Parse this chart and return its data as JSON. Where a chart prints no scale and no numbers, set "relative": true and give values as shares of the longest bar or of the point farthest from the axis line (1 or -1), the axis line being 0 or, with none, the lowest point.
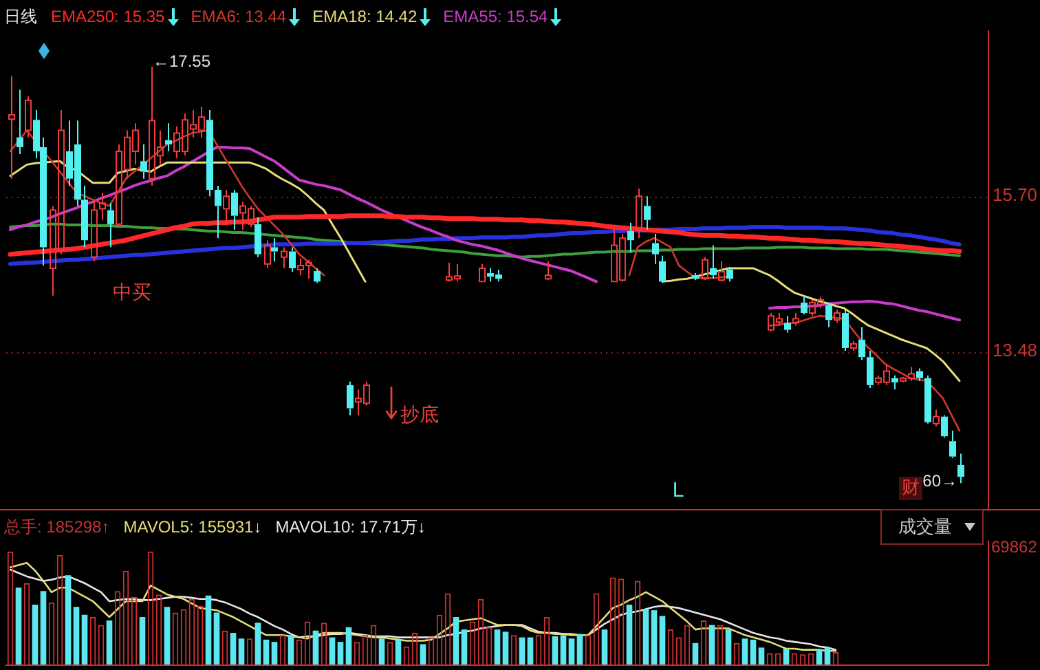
{
  "chart_data": [
    {
      "type": "candlestick",
      "title": "日线",
      "categories": [
        null,
        null,
        null,
        null,
        null,
        null,
        null,
        null,
        null,
        null,
        null,
        null,
        null,
        null,
        null,
        null,
        null,
        null,
        null,
        null,
        null,
        null,
        null,
        null,
        null,
        null,
        null,
        null,
        null,
        null,
        null,
        null,
        null,
        null,
        null,
        null,
        null,
        null,
        null,
        null,
        null,
        null,
        null,
        null,
        null,
        null,
        null,
        null,
        null,
        null,
        null,
        null,
        null,
        null,
        null,
        null,
        null,
        null,
        null,
        null,
        null,
        null,
        null,
        null,
        null,
        null,
        null,
        null,
        null,
        null,
        null,
        null,
        null,
        null,
        null,
        null,
        null,
        null,
        null,
        null,
        null,
        null,
        null,
        null,
        null,
        null,
        null,
        null,
        null,
        null,
        null,
        null,
        null,
        null,
        null,
        null,
        null,
        null,
        null,
        null,
        null,
        null,
        null,
        null,
        null,
        null,
        null,
        null,
        null,
        null,
        null,
        null,
        null,
        null,
        null,
        null,
        null,
        null,
        null
      ],
      "ohlc": [
        [
          16.8,
          17.42,
          15.95,
          16.86
        ],
        [
          16.54,
          17.22,
          16.3,
          16.4
        ],
        [
          16.64,
          17.13,
          16.54,
          17.07
        ],
        [
          16.79,
          16.93,
          16.24,
          16.34
        ],
        [
          16.4,
          16.54,
          14.71,
          14.97
        ],
        [
          14.67,
          15.56,
          14.28,
          15.5
        ],
        [
          14.93,
          16.93,
          14.87,
          16.64
        ],
        [
          16.34,
          16.78,
          15.85,
          15.95
        ],
        [
          16.44,
          16.78,
          15.56,
          15.65
        ],
        [
          15.65,
          15.85,
          14.97,
          15.07
        ],
        [
          14.83,
          15.65,
          14.77,
          15.5
        ],
        [
          15.52,
          15.75,
          15.36,
          15.6
        ],
        [
          15.5,
          15.6,
          14.97,
          15.3
        ],
        [
          15.3,
          16.44,
          15.26,
          16.34
        ],
        [
          16.08,
          16.64,
          15.95,
          16.54
        ],
        [
          16.34,
          16.74,
          16.15,
          16.64
        ],
        [
          16.2,
          16.44,
          15.95,
          16.05
        ],
        [
          15.95,
          17.55,
          15.85,
          16.78
        ],
        [
          16.28,
          16.64,
          16.15,
          16.4
        ],
        [
          16.5,
          16.74,
          16.34,
          16.44
        ],
        [
          16.34,
          16.7,
          16.24,
          16.6
        ],
        [
          16.34,
          16.88,
          16.28,
          16.79
        ],
        [
          16.66,
          16.93,
          16.54,
          16.72
        ],
        [
          16.64,
          16.98,
          16.54,
          16.83
        ],
        [
          16.79,
          16.93,
          15.7,
          15.79
        ],
        [
          15.79,
          15.85,
          15.1,
          15.56
        ],
        [
          15.52,
          15.79,
          15.3,
          15.7
        ],
        [
          15.75,
          15.79,
          15.22,
          15.42
        ],
        [
          15.46,
          15.62,
          15.22,
          15.56
        ],
        [
          15.3,
          15.56,
          15.26,
          15.52
        ],
        [
          15.3,
          15.4,
          14.83,
          14.87
        ],
        [
          14.73,
          15.07,
          14.67,
          15.0
        ],
        [
          14.97,
          15.1,
          14.77,
          14.91
        ],
        [
          14.83,
          14.97,
          14.67,
          14.91
        ],
        [
          14.91,
          14.97,
          14.62,
          14.67
        ],
        [
          14.65,
          14.81,
          14.57,
          14.71
        ],
        [
          14.71,
          14.79,
          14.52,
          14.75
        ],
        [
          14.63,
          14.67,
          14.46,
          14.48
        ],
        null,
        null,
        null,
        [
          13.0,
          13.05,
          12.57,
          12.67
        ],
        [
          12.76,
          12.94,
          12.57,
          12.81
        ],
        [
          12.74,
          13.05,
          12.71,
          13.0
        ],
        null,
        null,
        null,
        null,
        null,
        null,
        null,
        null,
        null,
        [
          14.5,
          14.75,
          14.48,
          14.55
        ],
        [
          14.52,
          14.73,
          14.48,
          14.56
        ],
        null,
        null,
        [
          14.48,
          14.73,
          14.48,
          14.67
        ],
        [
          14.6,
          14.67,
          14.48,
          14.55
        ],
        [
          14.58,
          14.65,
          14.48,
          14.52
        ],
        null,
        null,
        null,
        null,
        null,
        [
          14.52,
          14.77,
          14.5,
          14.57
        ],
        null,
        null,
        null,
        null,
        null,
        null,
        null,
        [
          14.48,
          15.26,
          14.48,
          15.0
        ],
        [
          14.5,
          15.16,
          14.48,
          15.1
        ],
        [
          15.2,
          15.32,
          14.89,
          15.07
        ],
        [
          15.22,
          15.81,
          15.1,
          15.7
        ],
        [
          15.56,
          15.7,
          15.22,
          15.36
        ],
        [
          15.03,
          15.16,
          14.73,
          14.87
        ],
        [
          14.77,
          14.85,
          14.46,
          14.48
        ],
        null,
        null,
        null,
        [
          14.57,
          14.6,
          14.5,
          14.52
        ],
        [
          14.52,
          14.83,
          14.5,
          14.79
        ],
        [
          14.67,
          15.0,
          14.52,
          14.57
        ],
        [
          14.5,
          14.77,
          14.48,
          14.62
        ],
        [
          14.65,
          14.69,
          14.48,
          14.52
        ],
        null,
        null,
        null,
        null,
        [
          13.79,
          14.03,
          13.77,
          13.99
        ],
        [
          13.9,
          14.03,
          13.85,
          13.95
        ],
        [
          13.89,
          13.99,
          13.75,
          13.79
        ],
        [
          13.89,
          14.03,
          13.85,
          13.95
        ],
        [
          14.18,
          14.28,
          14.01,
          14.03
        ],
        [
          14.03,
          14.22,
          13.99,
          14.18
        ],
        [
          14.14,
          14.26,
          14.1,
          14.22
        ],
        [
          14.14,
          14.18,
          13.83,
          13.93
        ],
        [
          13.93,
          14.08,
          13.89,
          14.03
        ],
        [
          14.03,
          14.07,
          13.49,
          13.53
        ],
        [
          13.53,
          13.63,
          13.49,
          13.59
        ],
        [
          13.65,
          13.83,
          13.36,
          13.4
        ],
        [
          13.4,
          13.49,
          12.96,
          13.0
        ],
        [
          13.04,
          13.14,
          13.0,
          13.1
        ],
        [
          13.04,
          13.3,
          13.0,
          13.2
        ],
        [
          13.1,
          13.14,
          12.94,
          13.04
        ],
        [
          13.06,
          13.12,
          13.04,
          13.1
        ],
        [
          13.1,
          13.26,
          13.06,
          13.16
        ],
        [
          13.2,
          13.24,
          13.06,
          13.1
        ],
        [
          13.1,
          13.14,
          12.45,
          12.47
        ],
        [
          12.45,
          12.65,
          12.41,
          12.55
        ],
        [
          12.55,
          12.57,
          12.25,
          12.27
        ],
        [
          12.2,
          12.35,
          11.96,
          11.98
        ],
        [
          11.86,
          12.02,
          11.6,
          11.69
        ],
        null,
        null,
        null
      ],
      "colors": [
        "#f03c3c",
        "#54f0f0",
        "#f03c3c",
        "#54f0f0",
        "#54f0f0",
        "#f03c3c",
        "#f03c3c",
        "#54f0f0",
        "#54f0f0",
        "#54f0f0",
        "#f03c3c",
        "#f03c3c",
        "#54f0f0",
        "#f03c3c",
        "#f03c3c",
        "#f03c3c",
        "#54f0f0",
        "#f03c3c",
        "#f03c3c",
        "#54f0f0",
        "#f03c3c",
        "#f03c3c",
        "#f03c3c",
        "#f03c3c",
        "#54f0f0",
        "#54f0f0",
        "#f03c3c",
        "#54f0f0",
        "#f03c3c",
        "#f03c3c",
        "#54f0f0",
        "#f03c3c",
        "#54f0f0",
        "#f03c3c",
        "#54f0f0",
        "#f03c3c",
        "#f03c3c",
        "#54f0f0",
        null,
        null,
        null,
        "#54f0f0",
        "#f03c3c",
        "#f03c3c",
        null,
        null,
        null,
        null,
        null,
        null,
        null,
        null,
        null,
        "#f03c3c",
        "#f03c3c",
        null,
        null,
        "#f03c3c",
        "#54f0f0",
        "#54f0f0",
        null,
        null,
        null,
        null,
        null,
        "#f03c3c",
        null,
        null,
        null,
        null,
        null,
        null,
        null,
        "#f03c3c",
        "#f03c3c",
        "#54f0f0",
        "#f03c3c",
        "#54f0f0",
        "#54f0f0",
        "#54f0f0",
        null,
        null,
        null,
        "#54f0f0",
        "#f03c3c",
        "#54f0f0",
        "#f03c3c",
        "#54f0f0",
        null,
        null,
        null,
        null,
        "#f03c3c",
        "#f03c3c",
        "#54f0f0",
        "#f03c3c",
        "#54f0f0",
        "#f03c3c",
        "#f03c3c",
        "#54f0f0",
        "#f03c3c",
        "#54f0f0",
        "#f03c3c",
        "#54f0f0",
        "#54f0f0",
        "#f03c3c",
        "#f03c3c",
        "#54f0f0",
        "#f03c3c",
        "#f03c3c",
        "#54f0f0",
        "#54f0f0",
        "#f03c3c",
        "#54f0f0",
        "#54f0f0",
        "#54f0f0",
        null,
        null,
        null
      ],
      "series": [
        {
          "type": "line",
          "name": "EMA250: 15.35",
          "color": "#ff2828",
          "values": [
            14.87,
            14.88,
            14.89,
            14.9,
            14.91,
            14.92,
            14.93,
            14.94,
            14.95,
            14.97,
            14.99,
            15.01,
            15.03,
            15.05,
            15.07,
            15.1,
            15.13,
            15.16,
            15.19,
            15.22,
            15.25,
            15.27,
            15.3,
            15.31,
            15.31,
            15.32,
            15.32,
            15.33,
            15.33,
            15.34,
            15.36,
            15.38,
            15.4,
            15.4,
            15.4,
            15.4,
            15.41,
            15.41,
            15.41,
            15.41,
            15.41,
            15.42,
            15.42,
            15.42,
            15.42,
            15.42,
            15.41,
            15.41,
            15.4,
            15.4,
            15.4,
            15.39,
            15.39,
            15.38,
            15.38,
            15.38,
            15.38,
            15.37,
            15.37,
            15.37,
            15.36,
            15.36,
            15.36,
            15.35,
            15.35,
            15.34,
            15.33,
            15.33,
            15.32,
            15.31,
            15.3,
            15.29,
            15.27,
            15.26,
            15.25,
            15.24,
            15.23,
            15.22,
            15.21,
            15.2,
            15.19,
            15.18,
            15.16,
            15.15,
            15.14,
            15.14,
            15.14,
            15.13,
            15.13,
            15.12,
            15.12,
            15.11,
            15.1,
            15.1,
            15.09,
            15.08,
            15.07,
            15.07,
            15.06,
            15.05,
            15.05,
            15.04,
            15.03,
            15.02,
            15.02,
            15.01,
            15.0,
            14.99,
            14.98,
            14.97,
            14.96,
            14.94,
            14.93,
            14.92,
            14.92,
            14.91,
            null,
            null,
            null
          ]
        },
        {
          "type": "line",
          "name": "EMA6: 13.44",
          "color": "#d2372d",
          "values": [
            16.34,
            16.49,
            16.64,
            16.49,
            16.34,
            16.2,
            16.05,
            15.9,
            15.75,
            15.7,
            15.65,
            15.6,
            15.56,
            15.75,
            15.95,
            16.05,
            16.14,
            16.24,
            16.34,
            16.44,
            16.49,
            16.55,
            16.6,
            16.62,
            16.64,
            16.44,
            16.24,
            16.05,
            15.85,
            15.68,
            15.52,
            15.4,
            15.28,
            15.16,
            15.02,
            14.87,
            14.77,
            14.67,
            14.57,
            null,
            null,
            null,
            null,
            null,
            null,
            null,
            null,
            null,
            null,
            null,
            null,
            null,
            null,
            null,
            null,
            null,
            null,
            null,
            null,
            null,
            null,
            null,
            null,
            null,
            null,
            null,
            null,
            null,
            null,
            null,
            null,
            null,
            null,
            null,
            null,
            14.57,
            14.97,
            15.05,
            15.1,
            15.04,
            14.97,
            14.71,
            14.62,
            14.53,
            14.53,
            14.53,
            14.54,
            14.55,
            null,
            null,
            null,
            null,
            13.85,
            13.86,
            13.88,
            13.89,
            13.92,
            13.96,
            13.99,
            13.98,
            13.96,
            13.95,
            13.8,
            13.65,
            13.53,
            13.42,
            13.3,
            13.23,
            13.17,
            13.1,
            13.08,
            13.06,
            12.94,
            12.81,
            12.58,
            12.35,
            null,
            null,
            null
          ]
        },
        {
          "type": "line",
          "name": "EMA18: 14.42",
          "color": "#e6dc78",
          "values": [
            15.99,
            16.07,
            16.15,
            16.17,
            16.18,
            16.19,
            16.2,
            16.11,
            16.07,
            15.98,
            15.89,
            15.89,
            15.89,
            16.03,
            16.06,
            16.09,
            16.07,
            16.05,
            16.12,
            16.18,
            16.18,
            16.18,
            16.18,
            16.18,
            16.18,
            16.18,
            16.18,
            16.18,
            16.18,
            16.18,
            16.14,
            16.09,
            16.01,
            15.94,
            15.88,
            15.81,
            15.71,
            15.6,
            15.5,
            15.3,
            15.11,
            14.9,
            14.69,
            14.48,
            null,
            null,
            null,
            null,
            null,
            null,
            null,
            null,
            null,
            null,
            null,
            null,
            null,
            null,
            null,
            null,
            null,
            null,
            null,
            null,
            null,
            null,
            null,
            null,
            null,
            null,
            null,
            null,
            null,
            null,
            null,
            null,
            null,
            null,
            null,
            14.48,
            14.49,
            14.51,
            14.52,
            14.55,
            14.58,
            14.61,
            14.64,
            14.67,
            14.67,
            14.67,
            14.67,
            14.62,
            14.57,
            14.49,
            14.4,
            14.32,
            14.28,
            14.24,
            14.2,
            14.17,
            14.13,
            14.1,
            14.02,
            13.93,
            13.85,
            13.8,
            13.75,
            13.7,
            13.65,
            13.61,
            13.57,
            13.53,
            13.44,
            13.34,
            13.2,
            13.06,
            null,
            null,
            null
          ]
        },
        {
          "type": "line",
          "name": "EMA55: 15.54",
          "color": "#c83cc8",
          "values": [
            15.22,
            15.26,
            15.29,
            15.33,
            15.36,
            15.4,
            15.45,
            15.49,
            15.53,
            15.58,
            15.62,
            15.67,
            15.71,
            15.76,
            15.8,
            15.85,
            15.89,
            15.92,
            15.96,
            15.99,
            16.06,
            16.12,
            16.19,
            16.26,
            16.33,
            16.4,
            16.4,
            16.39,
            16.39,
            16.38,
            16.32,
            16.26,
            16.2,
            16.11,
            16.02,
            15.93,
            15.9,
            15.87,
            15.85,
            15.82,
            15.79,
            15.73,
            15.67,
            15.62,
            15.56,
            15.5,
            15.45,
            15.4,
            15.35,
            15.3,
            15.25,
            15.21,
            15.16,
            15.12,
            15.07,
            15.04,
            15.01,
            14.99,
            14.96,
            14.93,
            14.89,
            14.85,
            14.81,
            14.78,
            14.75,
            14.72,
            14.69,
            14.66,
            14.63,
            14.58,
            14.53,
            14.48,
            null,
            null,
            null,
            null,
            null,
            null,
            null,
            null,
            null,
            null,
            null,
            null,
            null,
            null,
            null,
            null,
            null,
            null,
            null,
            null,
            14.1,
            14.11,
            14.11,
            14.12,
            14.12,
            14.13,
            14.14,
            14.16,
            14.17,
            14.18,
            14.19,
            14.19,
            14.2,
            14.19,
            14.17,
            14.16,
            14.13,
            14.1,
            14.07,
            14.05,
            14.02,
            13.99,
            13.96,
            13.93,
            null,
            null,
            null
          ]
        },
        {
          "type": "line",
          "color": "#2832dc",
          "values": [
            14.73,
            14.74,
            14.75,
            14.75,
            14.76,
            14.77,
            14.78,
            14.79,
            14.79,
            14.8,
            14.81,
            14.82,
            14.83,
            14.84,
            14.85,
            14.86,
            14.86,
            14.87,
            14.88,
            14.89,
            14.9,
            14.91,
            14.92,
            14.93,
            14.94,
            14.95,
            14.96,
            14.96,
            14.97,
            14.98,
            14.99,
            15.0,
            15.01,
            15.01,
            15.01,
            15.01,
            15.02,
            15.02,
            15.02,
            15.02,
            15.02,
            15.03,
            15.03,
            15.03,
            15.04,
            15.04,
            15.05,
            15.06,
            15.06,
            15.07,
            15.08,
            15.08,
            15.09,
            15.09,
            15.1,
            15.1,
            15.1,
            15.11,
            15.11,
            15.11,
            15.11,
            15.12,
            15.12,
            15.13,
            15.14,
            15.14,
            15.15,
            15.16,
            15.17,
            15.17,
            15.18,
            15.19,
            15.19,
            15.2,
            15.2,
            15.21,
            15.21,
            15.21,
            15.22,
            15.22,
            15.22,
            15.23,
            15.23,
            15.23,
            15.24,
            15.24,
            15.24,
            15.25,
            15.25,
            15.25,
            15.26,
            15.26,
            15.26,
            15.26,
            15.25,
            15.25,
            15.25,
            15.25,
            15.25,
            15.24,
            15.24,
            15.24,
            15.23,
            15.22,
            15.21,
            15.19,
            15.18,
            15.17,
            15.15,
            15.14,
            15.12,
            15.1,
            15.08,
            15.06,
            15.03,
            15.01,
            null,
            null,
            null
          ]
        },
        {
          "type": "line",
          "color": "#3ca03c",
          "values": [
            15.26,
            15.27,
            15.28,
            15.28,
            15.29,
            15.3,
            15.3,
            15.29,
            15.29,
            15.29,
            15.28,
            15.28,
            15.28,
            15.27,
            15.27,
            15.26,
            15.25,
            15.25,
            15.24,
            15.24,
            15.23,
            15.23,
            15.22,
            15.21,
            15.2,
            15.2,
            15.19,
            15.18,
            15.18,
            15.17,
            15.16,
            15.15,
            15.14,
            15.13,
            15.12,
            15.11,
            15.1,
            15.08,
            15.07,
            15.06,
            15.05,
            15.04,
            15.03,
            15.02,
            15.02,
            15.01,
            15.0,
            14.99,
            14.98,
            14.97,
            14.96,
            14.94,
            14.93,
            14.92,
            14.91,
            14.9,
            14.88,
            14.87,
            14.86,
            14.85,
            14.85,
            14.84,
            14.83,
            14.84,
            14.84,
            14.85,
            14.86,
            14.87,
            14.87,
            14.88,
            14.89,
            14.9,
            14.9,
            14.91,
            14.91,
            14.91,
            14.92,
            14.92,
            14.92,
            14.93,
            14.93,
            14.94,
            14.94,
            14.94,
            14.95,
            14.95,
            14.95,
            14.95,
            14.95,
            14.96,
            14.96,
            14.96,
            14.96,
            14.97,
            14.97,
            14.97,
            14.97,
            14.96,
            14.96,
            14.96,
            14.95,
            14.95,
            14.95,
            14.95,
            14.94,
            14.94,
            14.94,
            14.93,
            14.92,
            14.91,
            14.9,
            14.89,
            14.88,
            14.87,
            14.86,
            14.85,
            null,
            null,
            null
          ]
        }
      ],
      "ylim": [
        11.23,
        18.07
      ],
      "yticks": [
        {
          "value": 15.7,
          "label": "15.70"
        },
        13.48
      ],
      "grid": "y",
      "legend": "top left",
      "tick_labels": "y",
      "annotations": [
        "←17.55",
        "中买",
        "抄底",
        "L",
        "财",
        "60→"
      ]
    },
    {
      "type": "bar",
      "relative": true,
      "categories": [
        null,
        null,
        null,
        null,
        null,
        null,
        null,
        null,
        null,
        null,
        null,
        null,
        null,
        null,
        null,
        null,
        null,
        null,
        null,
        null,
        null,
        null,
        null,
        null,
        null,
        null,
        null,
        null,
        null,
        null,
        null,
        null,
        null,
        null,
        null,
        null,
        null,
        null,
        null,
        null,
        null,
        null,
        null,
        null,
        null,
        null,
        null,
        null,
        null,
        null,
        null,
        null,
        null,
        null,
        null,
        null,
        null,
        null,
        null,
        null,
        null,
        null,
        null,
        null,
        null,
        null,
        null,
        null,
        null,
        null,
        null,
        null,
        null,
        null,
        null,
        null,
        null,
        null,
        null,
        null,
        null,
        null,
        null,
        null,
        null,
        null,
        null,
        null,
        null,
        null,
        null,
        null,
        null,
        null,
        null,
        null,
        null,
        null,
        null,
        null,
        null,
        null,
        null,
        null,
        null,
        null,
        null,
        null,
        null,
        null,
        null,
        null,
        null,
        null,
        null,
        null,
        null,
        null,
        null
      ],
      "series": [
        {
          "name": "总手: 185298↑",
          "color": "#c83232",
          "colors": [
            "#c83232",
            "#5ce6f0",
            "#c83232",
            "#5ce6f0",
            "#5ce6f0",
            "#c83232",
            "#c83232",
            "#5ce6f0",
            "#5ce6f0",
            "#5ce6f0",
            "#c83232",
            "#c83232",
            "#5ce6f0",
            "#c83232",
            "#c83232",
            "#c83232",
            "#5ce6f0",
            "#c83232",
            "#c83232",
            "#5ce6f0",
            "#c83232",
            "#c83232",
            "#c83232",
            "#c83232",
            "#5ce6f0",
            "#5ce6f0",
            "#c83232",
            "#5ce6f0",
            "#5ce6f0",
            "#c83232",
            "#5ce6f0",
            "#5ce6f0",
            "#5ce6f0",
            "#c83232",
            "#5ce6f0",
            "#c83232",
            "#c83232",
            "#5ce6f0",
            "#c83232",
            "#5ce6f0",
            "#5ce6f0",
            "#5ce6f0",
            "#c83232",
            "#c83232",
            "#c83232",
            "#5ce6f0",
            "#c83232",
            "#5ce6f0",
            "#c83232",
            "#c83232",
            "#5ce6f0",
            "#c83232",
            "#c83232",
            "#c83232",
            "#5ce6f0",
            "#5ce6f0",
            "#c83232",
            "#c83232",
            "#c83232",
            "#5ce6f0",
            "#5ce6f0",
            "#c83232",
            "#5ce6f0",
            "#5ce6f0",
            "#c83232",
            "#c83232",
            "#5ce6f0",
            "#5ce6f0",
            "#5ce6f0",
            "#5ce6f0",
            "#c83232",
            "#c83232",
            "#5ce6f0",
            "#c83232",
            "#c83232",
            "#5ce6f0",
            "#c83232",
            "#5ce6f0",
            "#5ce6f0",
            "#5ce6f0",
            "#c83232",
            "#c83232",
            "#c83232",
            "#5ce6f0",
            "#c83232",
            "#5ce6f0",
            "#c83232",
            "#5ce6f0",
            "#c83232",
            "#5ce6f0",
            "#5ce6f0",
            "#5ce6f0",
            "#c83232",
            "#c83232",
            "#5ce6f0",
            "#c83232",
            "#c83232",
            "#c83232",
            "#5ce6f0",
            "#5ce6f0",
            "#c83232",
            null,
            null,
            null,
            null,
            null,
            null,
            null,
            null,
            null,
            null,
            null,
            null,
            null,
            null,
            null,
            null,
            null,
            null
          ],
          "values": [
            1.0,
            0.68,
            0.72,
            0.53,
            0.65,
            0.55,
            0.97,
            0.79,
            0.51,
            0.44,
            0.42,
            0.35,
            0.39,
            0.65,
            0.83,
            0.6,
            0.42,
            1.0,
            0.62,
            0.51,
            0.46,
            0.49,
            0.58,
            0.52,
            0.61,
            0.46,
            0.3,
            0.28,
            0.23,
            0.23,
            0.37,
            0.22,
            0.2,
            0.26,
            0.26,
            0.22,
            0.38,
            0.3,
            0.37,
            0.24,
            0.2,
            0.33,
            0.2,
            0.26,
            0.35,
            0.23,
            0.2,
            0.22,
            0.16,
            0.28,
            0.18,
            0.24,
            0.44,
            0.63,
            0.42,
            0.31,
            0.38,
            0.58,
            0.33,
            0.31,
            0.29,
            0.26,
            0.24,
            0.24,
            0.26,
            0.42,
            0.25,
            0.26,
            0.23,
            0.27,
            0.26,
            0.63,
            0.31,
            0.77,
            0.76,
            0.53,
            0.74,
            0.49,
            0.48,
            0.43,
            0.31,
            0.24,
            0.35,
            0.19,
            0.39,
            0.35,
            0.35,
            0.31,
            0.19,
            0.23,
            0.22,
            0.15,
            0.1,
            0.1,
            0.14,
            0.1,
            0.09,
            0.1,
            0.13,
            0.15,
            0.11,
            null,
            null,
            null,
            null,
            null,
            null,
            null,
            null,
            null,
            null,
            null,
            null,
            null,
            null,
            null,
            null,
            null,
            null
          ]
        },
        {
          "type": "line",
          "name": "MAVOL5: 155931↓",
          "color": "#e6dc78",
          "values": [
            0.86,
            0.88,
            0.9,
            0.83,
            0.74,
            0.64,
            0.68,
            0.68,
            0.64,
            0.6,
            0.56,
            0.49,
            0.42,
            0.49,
            0.56,
            0.56,
            0.56,
            0.7,
            0.66,
            0.62,
            0.6,
            0.58,
            0.54,
            0.5,
            0.49,
            0.48,
            0.45,
            0.42,
            0.38,
            0.34,
            0.3,
            0.26,
            0.26,
            0.26,
            0.25,
            0.24,
            0.23,
            0.26,
            0.28,
            0.28,
            0.28,
            0.27,
            0.26,
            0.25,
            0.24,
            0.24,
            0.23,
            0.22,
            0.21,
            0.21,
            0.21,
            0.22,
            0.27,
            0.32,
            0.38,
            0.39,
            0.4,
            0.41,
            0.38,
            0.35,
            0.35,
            0.35,
            0.34,
            0.3,
            0.28,
            0.28,
            0.27,
            0.27,
            0.27,
            0.26,
            0.26,
            0.34,
            0.42,
            0.5,
            0.53,
            0.57,
            0.6,
            0.64,
            0.6,
            0.56,
            0.5,
            0.44,
            0.38,
            0.31,
            0.32,
            0.32,
            0.32,
            0.32,
            0.29,
            0.26,
            0.24,
            0.22,
            0.2,
            0.17,
            0.14,
            0.14,
            0.13,
            0.13,
            0.13,
            0.12,
            0.12,
            null,
            null,
            null,
            null,
            null,
            null,
            null,
            null,
            null,
            null,
            null,
            null,
            null,
            null,
            null,
            null,
            null,
            null
          ]
        },
        {
          "type": "line",
          "name": "MAVOL10: 17.71万↓",
          "color": "#e6e6e6",
          "values": [
            0.84,
            0.81,
            0.78,
            0.76,
            0.74,
            0.75,
            0.77,
            0.78,
            0.75,
            0.72,
            0.68,
            0.64,
            0.56,
            0.57,
            0.58,
            0.58,
            0.57,
            0.57,
            0.58,
            0.59,
            0.6,
            0.6,
            0.59,
            0.58,
            0.58,
            0.57,
            0.55,
            0.52,
            0.49,
            0.45,
            0.42,
            0.38,
            0.34,
            0.31,
            0.27,
            0.24,
            0.25,
            0.25,
            0.26,
            0.27,
            0.27,
            0.28,
            0.27,
            0.26,
            0.25,
            0.25,
            0.25,
            0.24,
            0.24,
            0.24,
            0.24,
            0.24,
            0.24,
            0.26,
            0.27,
            0.29,
            0.3,
            0.32,
            0.33,
            0.34,
            0.35,
            0.35,
            0.35,
            0.32,
            0.29,
            0.28,
            0.28,
            0.27,
            0.26,
            0.26,
            0.26,
            0.31,
            0.36,
            0.4,
            0.44,
            0.46,
            0.47,
            0.49,
            0.51,
            0.52,
            0.51,
            0.5,
            0.48,
            0.46,
            0.44,
            0.42,
            0.4,
            0.37,
            0.34,
            0.31,
            0.28,
            0.26,
            0.24,
            0.23,
            0.21,
            0.2,
            0.19,
            0.18,
            0.16,
            0.15,
            0.13,
            null,
            null,
            null,
            null,
            null,
            null,
            null,
            null,
            null,
            null,
            null,
            null,
            null,
            null,
            null,
            null,
            null,
            null
          ]
        }
      ],
      "legend": "top left",
      "annotations": [
        "成交量",
        "69862"
      ]
    }
  ]
}
